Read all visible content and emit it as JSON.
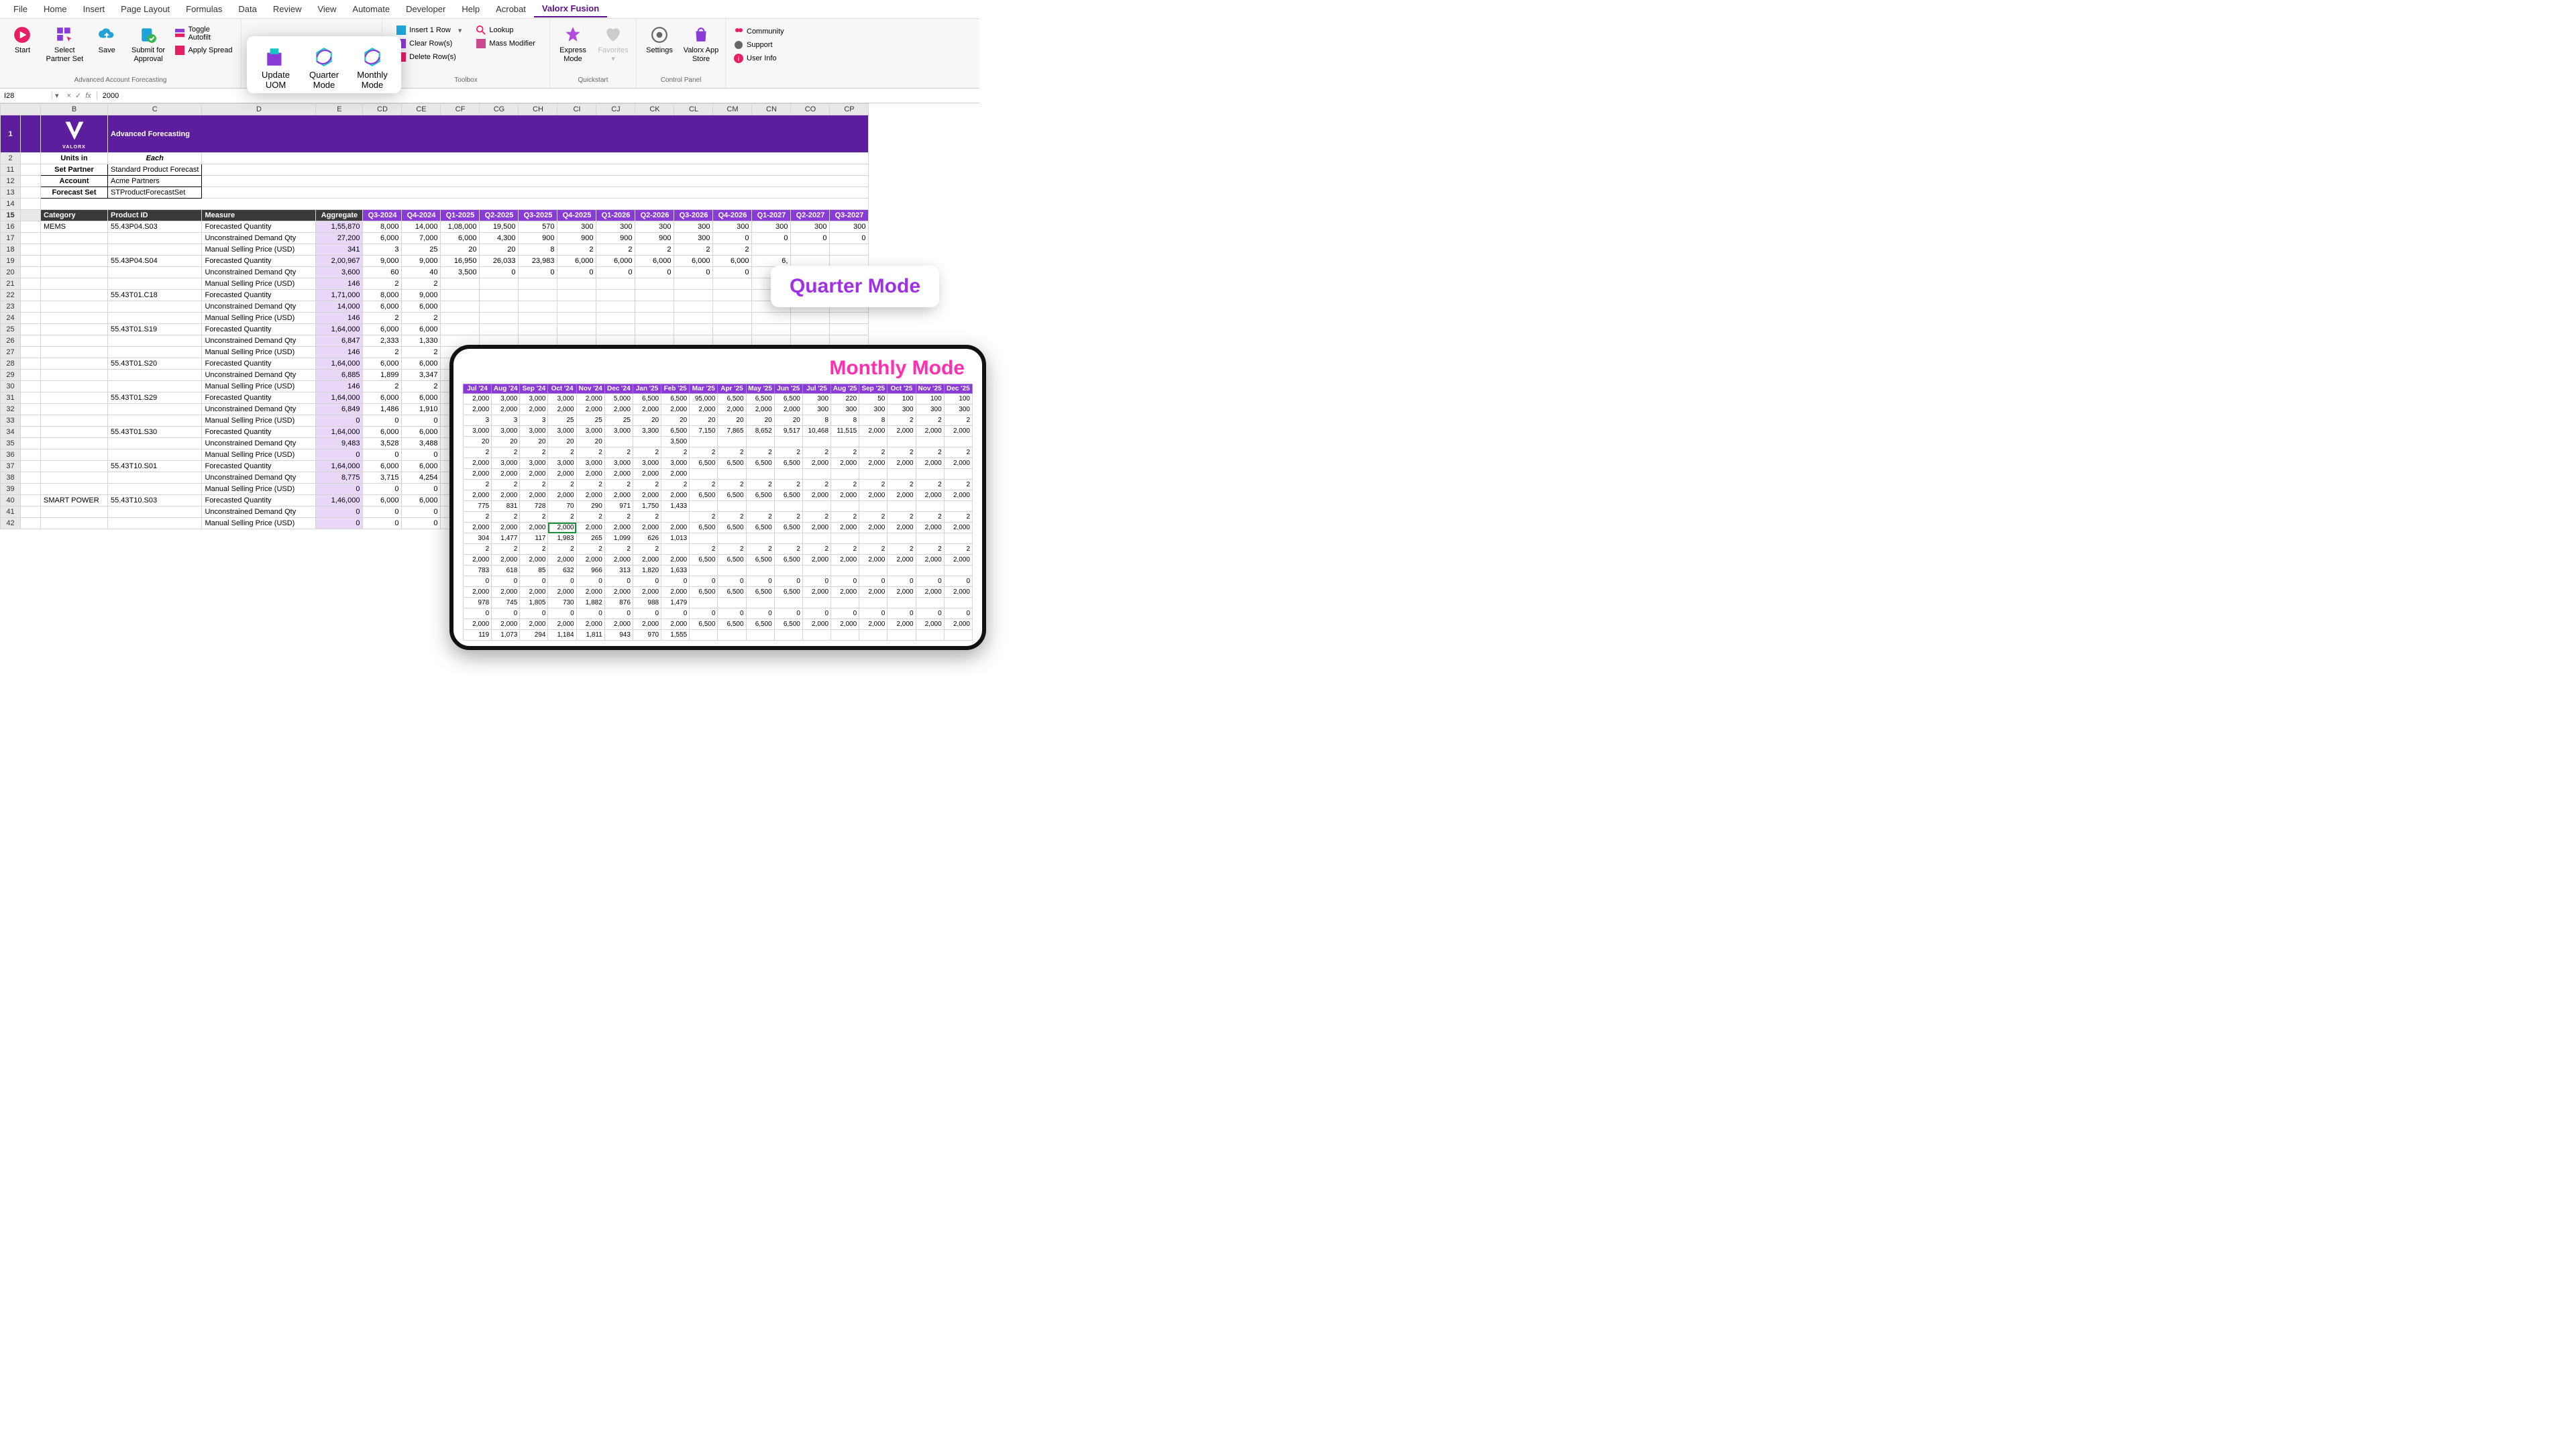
{
  "tabs": [
    "File",
    "Home",
    "Insert",
    "Page Layout",
    "Formulas",
    "Data",
    "Review",
    "View",
    "Automate",
    "Developer",
    "Help",
    "Acrobat",
    "Valorx Fusion"
  ],
  "active_tab": "Valorx Fusion",
  "ribbon": {
    "g1": {
      "start": "Start",
      "select": "Select Partner Set",
      "save": "Save",
      "submit": "Submit for Approval",
      "toggle": "Toggle Autofilt",
      "apply": "Apply Spread",
      "label": "Advanced Account Forecasting"
    },
    "pop": {
      "uom": "Update UOM",
      "quarter": "Quarter Mode",
      "monthly": "Monthly Mode"
    },
    "g3": {
      "insert": "Insert 1 Row",
      "clear": "Clear Row(s)",
      "delete": "Delete Row(s)",
      "lookup": "Lookup",
      "mass": "Mass Modifier",
      "label": "Toolbox"
    },
    "g4": {
      "express": "Express Mode",
      "fav": "Favorites",
      "label": "Quickstart"
    },
    "g5": {
      "settings": "Settings",
      "store": "Valorx App Store",
      "label": "Control Panel"
    },
    "g6": {
      "community": "Community",
      "support": "Support",
      "user": "User Info"
    }
  },
  "fbar": {
    "name": "I28",
    "fx": "fx",
    "val": "2000"
  },
  "cols": [
    "A",
    "B",
    "C",
    "D",
    "E",
    "CD",
    "CE",
    "CF",
    "CG",
    "CH",
    "CI",
    "CJ",
    "CK",
    "CL",
    "CM",
    "CN",
    "CO",
    "CP"
  ],
  "banner": {
    "title": "Advanced Forecasting",
    "brand": "VALORX"
  },
  "config": {
    "units_label": "Units in",
    "units_val": "Each",
    "rows": [
      {
        "k": "Set Partner",
        "v": "Standard Product Forecast"
      },
      {
        "k": "Account",
        "v": "Acme Partners"
      },
      {
        "k": "Forecast Set",
        "v": "STProductForecastSet"
      }
    ]
  },
  "row_nums_head": [
    1,
    2,
    11,
    12,
    13,
    14,
    15
  ],
  "head": {
    "cat": "Category",
    "prod": "Product ID",
    "meas": "Measure",
    "agg": "Aggregate",
    "qtrs": [
      "Q3-2024",
      "Q4-2024",
      "Q1-2025",
      "Q2-2025",
      "Q3-2025",
      "Q4-2025",
      "Q1-2026",
      "Q2-2026",
      "Q3-2026",
      "Q4-2026",
      "Q1-2027",
      "Q2-2027",
      "Q3-2027"
    ]
  },
  "qcard": "Quarter Mode",
  "mcard": "Monthly Mode",
  "months": [
    "Jul '24",
    "Aug '24",
    "Sep '24",
    "Oct '24",
    "Nov '24",
    "Dec '24",
    "Jan '25",
    "Feb '25",
    "Mar '25",
    "Apr '25",
    "May '25",
    "Jun '25",
    "Jul '25",
    "Aug '25",
    "Sep '25",
    "Oct '25",
    "Nov '25",
    "Dec '25"
  ],
  "data": [
    {
      "n": 16,
      "cat": "MEMS",
      "prod": "55.43P04.S03",
      "meas": "Forecasted Quantity",
      "agg": "1,55,870",
      "q": [
        "8,000",
        "14,000",
        "1,08,000",
        "19,500",
        "570",
        "300",
        "300",
        "300",
        "300",
        "300",
        "300",
        "300",
        "300"
      ]
    },
    {
      "n": 17,
      "meas": "Unconstrained Demand Qty",
      "agg": "27,200",
      "q": [
        "6,000",
        "7,000",
        "6,000",
        "4,300",
        "900",
        "900",
        "900",
        "900",
        "300",
        "0",
        "0",
        "0",
        "0"
      ]
    },
    {
      "n": 18,
      "meas": "Manual Selling Price (USD)",
      "agg": "341",
      "q": [
        "3",
        "25",
        "20",
        "20",
        "8",
        "2",
        "2",
        "2",
        "2",
        "2",
        "",
        "",
        ""
      ]
    },
    {
      "n": 19,
      "prod": "55.43P04.S04",
      "meas": "Forecasted Quantity",
      "agg": "2,00,967",
      "q": [
        "9,000",
        "9,000",
        "16,950",
        "26,033",
        "23,983",
        "6,000",
        "6,000",
        "6,000",
        "6,000",
        "6,000",
        "6,",
        "",
        ""
      ]
    },
    {
      "n": 20,
      "meas": "Unconstrained Demand Qty",
      "agg": "3,600",
      "q": [
        "60",
        "40",
        "3,500",
        "0",
        "0",
        "0",
        "0",
        "0",
        "0",
        "0",
        "",
        "",
        ""
      ]
    },
    {
      "n": 21,
      "meas": "Manual Selling Price (USD)",
      "agg": "146",
      "q": [
        "2",
        "2",
        "",
        "",
        "",
        "",
        "",
        "",
        "",
        "",
        "",
        "",
        ""
      ]
    },
    {
      "n": 22,
      "prod": "55.43T01.C18",
      "meas": "Forecasted Quantity",
      "agg": "1,71,000",
      "q": [
        "8,000",
        "9,000",
        "",
        "",
        "",
        "",
        "",
        "",
        "",
        "",
        "",
        "",
        ""
      ]
    },
    {
      "n": 23,
      "meas": "Unconstrained Demand Qty",
      "agg": "14,000",
      "q": [
        "6,000",
        "6,000",
        "",
        "",
        "",
        "",
        "",
        "",
        "",
        "",
        "",
        "",
        ""
      ]
    },
    {
      "n": 24,
      "meas": "Manual Selling Price (USD)",
      "agg": "146",
      "q": [
        "2",
        "2",
        "",
        "",
        "",
        "",
        "",
        "",
        "",
        "",
        "",
        "",
        ""
      ]
    },
    {
      "n": 25,
      "prod": "55.43T01.S19",
      "meas": "Forecasted Quantity",
      "agg": "1,64,000",
      "q": [
        "6,000",
        "6,000",
        "",
        "",
        "",
        "",
        "",
        "",
        "",
        "",
        "",
        "",
        ""
      ]
    },
    {
      "n": 26,
      "meas": "Unconstrained Demand Qty",
      "agg": "6,847",
      "q": [
        "2,333",
        "1,330",
        "",
        "",
        "",
        "",
        "",
        "",
        "",
        "",
        "",
        "",
        ""
      ]
    },
    {
      "n": 27,
      "meas": "Manual Selling Price (USD)",
      "agg": "146",
      "q": [
        "2",
        "2",
        "",
        "",
        "",
        "",
        "",
        "",
        "",
        "",
        "",
        "",
        ""
      ]
    },
    {
      "n": 28,
      "prod": "55.43T01.S20",
      "meas": "Forecasted Quantity",
      "agg": "1,64,000",
      "q": [
        "6,000",
        "6,000",
        "",
        "",
        "",
        "",
        "",
        "",
        "",
        "",
        "",
        "",
        ""
      ]
    },
    {
      "n": 29,
      "meas": "Unconstrained Demand Qty",
      "agg": "6,885",
      "q": [
        "1,899",
        "3,347",
        "",
        "",
        "",
        "",
        "",
        "",
        "",
        "",
        "",
        "",
        ""
      ]
    },
    {
      "n": 30,
      "meas": "Manual Selling Price (USD)",
      "agg": "146",
      "q": [
        "2",
        "2",
        "",
        "",
        "",
        "",
        "",
        "",
        "",
        "",
        "",
        "",
        ""
      ]
    },
    {
      "n": 31,
      "prod": "55.43T01.S29",
      "meas": "Forecasted Quantity",
      "agg": "1,64,000",
      "q": [
        "6,000",
        "6,000",
        "",
        "",
        "",
        "",
        "",
        "",
        "",
        "",
        "",
        "",
        ""
      ]
    },
    {
      "n": 32,
      "meas": "Unconstrained Demand Qty",
      "agg": "6,849",
      "q": [
        "1,486",
        "1,910",
        "",
        "",
        "",
        "",
        "",
        "",
        "",
        "",
        "",
        "",
        ""
      ]
    },
    {
      "n": 33,
      "meas": "Manual Selling Price (USD)",
      "agg": "0",
      "q": [
        "0",
        "0",
        "",
        "",
        "",
        "",
        "",
        "",
        "",
        "",
        "",
        "",
        ""
      ]
    },
    {
      "n": 34,
      "prod": "55.43T01.S30",
      "meas": "Forecasted Quantity",
      "agg": "1,64,000",
      "q": [
        "6,000",
        "6,000",
        "",
        "",
        "",
        "",
        "",
        "",
        "",
        "",
        "",
        "",
        ""
      ]
    },
    {
      "n": 35,
      "meas": "Unconstrained Demand Qty",
      "agg": "9,483",
      "q": [
        "3,528",
        "3,488",
        "",
        "",
        "",
        "",
        "",
        "",
        "",
        "",
        "",
        "",
        ""
      ]
    },
    {
      "n": 36,
      "meas": "Manual Selling Price (USD)",
      "agg": "0",
      "q": [
        "0",
        "0",
        "",
        "",
        "",
        "",
        "",
        "",
        "",
        "",
        "",
        "",
        ""
      ]
    },
    {
      "n": 37,
      "prod": "55.43T10.S01",
      "meas": "Forecasted Quantity",
      "agg": "1,64,000",
      "q": [
        "6,000",
        "6,000",
        "",
        "",
        "",
        "",
        "",
        "",
        "",
        "",
        "",
        "",
        ""
      ]
    },
    {
      "n": 38,
      "meas": "Unconstrained Demand Qty",
      "agg": "8,775",
      "q": [
        "3,715",
        "4,254",
        "",
        "",
        "",
        "",
        "",
        "",
        "",
        "",
        "",
        "",
        ""
      ]
    },
    {
      "n": 39,
      "meas": "Manual Selling Price (USD)",
      "agg": "0",
      "q": [
        "0",
        "0",
        "",
        "",
        "",
        "",
        "",
        "",
        "",
        "",
        "",
        "",
        ""
      ]
    },
    {
      "n": 40,
      "cat": "SMART POWER",
      "prod": "55.43T10.S03",
      "meas": "Forecasted Quantity",
      "agg": "1,46,000",
      "q": [
        "6,000",
        "6,000",
        "",
        "",
        "",
        "",
        "",
        "",
        "",
        "",
        "",
        "",
        ""
      ]
    },
    {
      "n": 41,
      "meas": "Unconstrained Demand Qty",
      "agg": "0",
      "q": [
        "0",
        "0",
        "",
        "",
        "",
        "",
        "",
        "",
        "",
        "",
        "",
        "",
        ""
      ]
    },
    {
      "n": 42,
      "meas": "Manual Selling Price (USD)",
      "agg": "0",
      "q": [
        "0",
        "0",
        "",
        "",
        "",
        "",
        "",
        "",
        "",
        "",
        "",
        "",
        ""
      ]
    }
  ],
  "mdata": [
    [
      "2,000",
      "3,000",
      "3,000",
      "3,000",
      "2,000",
      "5,000",
      "6,500",
      "6,500",
      "95,000",
      "6,500",
      "6,500",
      "6,500",
      "300",
      "220",
      "50",
      "100",
      "100",
      "100"
    ],
    [
      "2,000",
      "2,000",
      "2,000",
      "2,000",
      "2,000",
      "2,000",
      "2,000",
      "2,000",
      "2,000",
      "2,000",
      "2,000",
      "2,000",
      "300",
      "300",
      "300",
      "300",
      "300",
      "300"
    ],
    [
      "3",
      "3",
      "3",
      "25",
      "25",
      "25",
      "20",
      "20",
      "20",
      "20",
      "20",
      "20",
      "8",
      "8",
      "8",
      "2",
      "2",
      "2"
    ],
    [
      "3,000",
      "3,000",
      "3,000",
      "3,000",
      "3,000",
      "3,000",
      "3,300",
      "6,500",
      "7,150",
      "7,865",
      "8,652",
      "9,517",
      "10,468",
      "11,515",
      "2,000",
      "2,000",
      "2,000",
      "2,000"
    ],
    [
      "20",
      "20",
      "20",
      "20",
      "20",
      "",
      "",
      "3,500",
      "",
      "",
      "",
      "",
      "",
      "",
      "",
      "",
      "",
      ""
    ],
    [
      "2",
      "2",
      "2",
      "2",
      "2",
      "2",
      "2",
      "2",
      "2",
      "2",
      "2",
      "2",
      "2",
      "2",
      "2",
      "2",
      "2",
      "2"
    ],
    [
      "2,000",
      "3,000",
      "3,000",
      "3,000",
      "3,000",
      "3,000",
      "3,000",
      "3,000",
      "6,500",
      "6,500",
      "6,500",
      "6,500",
      "2,000",
      "2,000",
      "2,000",
      "2,000",
      "2,000",
      "2,000"
    ],
    [
      "2,000",
      "2,000",
      "2,000",
      "2,000",
      "2,000",
      "2,000",
      "2,000",
      "2,000",
      "",
      "",
      "",
      "",
      "",
      "",
      "",
      "",
      "",
      ""
    ],
    [
      "2",
      "2",
      "2",
      "2",
      "2",
      "2",
      "2",
      "2",
      "2",
      "2",
      "2",
      "2",
      "2",
      "2",
      "2",
      "2",
      "2",
      "2"
    ],
    [
      "2,000",
      "2,000",
      "2,000",
      "2,000",
      "2,000",
      "2,000",
      "2,000",
      "2,000",
      "6,500",
      "6,500",
      "6,500",
      "6,500",
      "2,000",
      "2,000",
      "2,000",
      "2,000",
      "2,000",
      "2,000"
    ],
    [
      "775",
      "831",
      "728",
      "70",
      "290",
      "971",
      "1,750",
      "1,433",
      "",
      "",
      "",
      "",
      "",
      "",
      "",
      "",
      "",
      ""
    ],
    [
      "2",
      "2",
      "2",
      "2",
      "2",
      "2",
      "2",
      "",
      "2",
      "2",
      "2",
      "2",
      "2",
      "2",
      "2",
      "2",
      "2",
      "2"
    ],
    [
      "2,000",
      "2,000",
      "2,000",
      "2,000",
      "2,000",
      "2,000",
      "2,000",
      "2,000",
      "6,500",
      "6,500",
      "6,500",
      "6,500",
      "2,000",
      "2,000",
      "2,000",
      "2,000",
      "2,000",
      "2,000"
    ],
    [
      "304",
      "1,477",
      "117",
      "1,983",
      "265",
      "1,099",
      "626",
      "1,013",
      "",
      "",
      "",
      "",
      "",
      "",
      "",
      "",
      "",
      ""
    ],
    [
      "2",
      "2",
      "2",
      "2",
      "2",
      "2",
      "2",
      "",
      "2",
      "2",
      "2",
      "2",
      "2",
      "2",
      "2",
      "2",
      "2",
      "2"
    ],
    [
      "2,000",
      "2,000",
      "2,000",
      "2,000",
      "2,000",
      "2,000",
      "2,000",
      "2,000",
      "6,500",
      "6,500",
      "6,500",
      "6,500",
      "2,000",
      "2,000",
      "2,000",
      "2,000",
      "2,000",
      "2,000"
    ],
    [
      "783",
      "618",
      "85",
      "632",
      "966",
      "313",
      "1,820",
      "1,633",
      "",
      "",
      "",
      "",
      "",
      "",
      "",
      "",
      "",
      ""
    ],
    [
      "0",
      "0",
      "0",
      "0",
      "0",
      "0",
      "0",
      "0",
      "0",
      "0",
      "0",
      "0",
      "0",
      "0",
      "0",
      "0",
      "0",
      "0"
    ],
    [
      "2,000",
      "2,000",
      "2,000",
      "2,000",
      "2,000",
      "2,000",
      "2,000",
      "2,000",
      "6,500",
      "6,500",
      "6,500",
      "6,500",
      "2,000",
      "2,000",
      "2,000",
      "2,000",
      "2,000",
      "2,000"
    ],
    [
      "978",
      "745",
      "1,805",
      "730",
      "1,882",
      "876",
      "988",
      "1,479",
      "",
      "",
      "",
      "",
      "",
      "",
      "",
      "",
      "",
      ""
    ],
    [
      "0",
      "0",
      "0",
      "0",
      "0",
      "0",
      "0",
      "0",
      "0",
      "0",
      "0",
      "0",
      "0",
      "0",
      "0",
      "0",
      "0",
      "0"
    ],
    [
      "2,000",
      "2,000",
      "2,000",
      "2,000",
      "2,000",
      "2,000",
      "2,000",
      "2,000",
      "6,500",
      "6,500",
      "6,500",
      "6,500",
      "2,000",
      "2,000",
      "2,000",
      "2,000",
      "2,000",
      "2,000"
    ],
    [
      "119",
      "1,073",
      "294",
      "1,184",
      "1,811",
      "943",
      "970",
      "1,555",
      "",
      "",
      "",
      "",
      "",
      "",
      "",
      "",
      "",
      ""
    ]
  ],
  "msel": {
    "row": 12,
    "col": 3
  },
  "colors": {
    "purple": "#5d1e9e",
    "purple2": "#8a3ad6",
    "agg": "#e8d7f7",
    "pink": "#ff2fb0",
    "qtitle": "#a030e8"
  }
}
